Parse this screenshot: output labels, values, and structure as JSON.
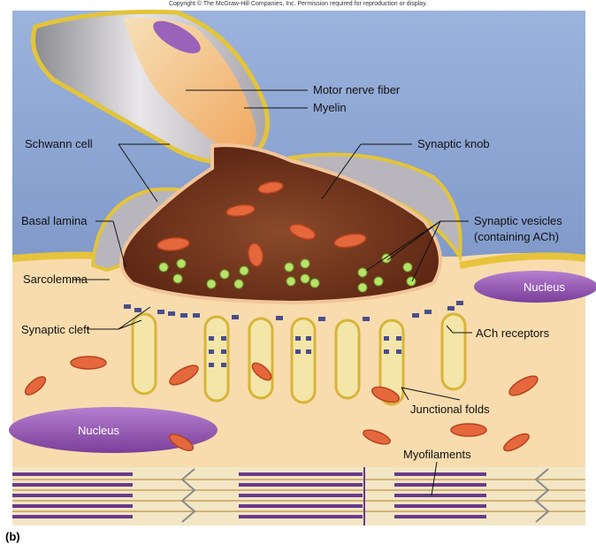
{
  "copyright": "Copyright © The McGraw-Hill Companies, Inc. Permission required for reproduction or display.",
  "panel_label": "(b)",
  "labels": {
    "motor_nerve_fiber": "Motor nerve fiber",
    "myelin": "Myelin",
    "schwann_cell": "Schwann cell",
    "synaptic_knob": "Synaptic knob",
    "basal_lamina": "Basal lamina",
    "synaptic_vesicles_line1": "Synaptic vesicles",
    "synaptic_vesicles_line2": "(containing ACh)",
    "sarcolemma": "Sarcolemma",
    "nucleus": "Nucleus",
    "synaptic_cleft": "Synaptic cleft",
    "ach_receptors": "ACh receptors",
    "junctional_folds": "Junctional folds",
    "myofilaments": "Myofilaments"
  },
  "colors": {
    "background_sky": "#8fa8d6",
    "muscle_fiber": "#f7d9a8",
    "basal_lamina": "#e8c84a",
    "synaptic_knob_fill": "#7a3a1e",
    "knob_interior": "#a8593a",
    "vesicle": "#b7e36a",
    "mitochondria": "#e0643a",
    "nucleus": "#9a62b8",
    "receptor": "#4a4a8a",
    "myofilament": "#6a3a8a"
  }
}
